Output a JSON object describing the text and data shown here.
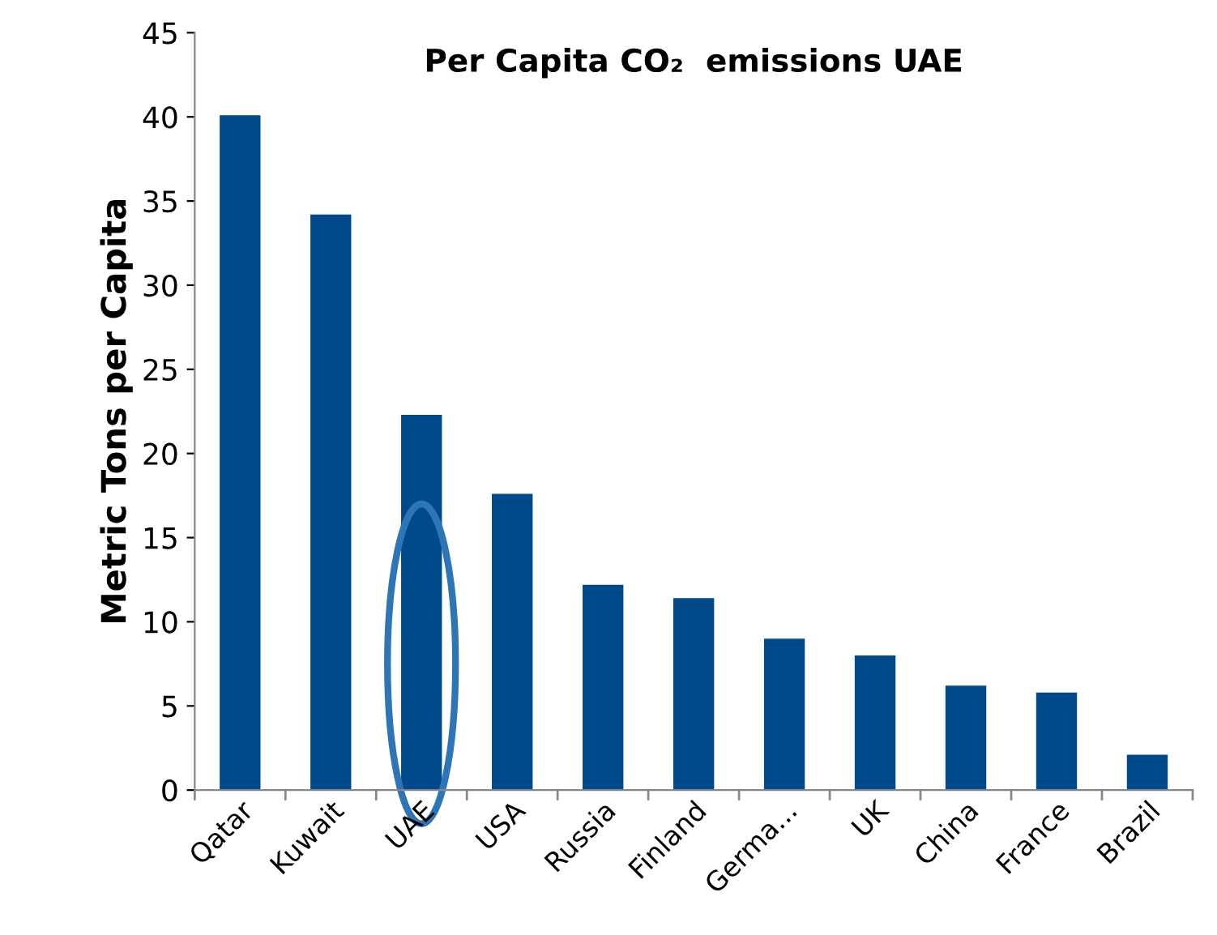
{
  "chart_data": {
    "type": "bar",
    "title": "Per Capita CO₂  emissions UAE",
    "ylabel": "Metric Tons per Capita",
    "categories": [
      "Qatar",
      "Kuwait",
      "UAE",
      "USA",
      "Russia",
      "Finland",
      "Germa...",
      "UK",
      "China",
      "France",
      "Brazil"
    ],
    "values": [
      40.1,
      34.2,
      22.3,
      17.6,
      12.2,
      11.4,
      9.0,
      8.0,
      6.2,
      5.8,
      2.1
    ],
    "color": "#004a8c",
    "ylim": [
      0,
      45
    ],
    "yticks": [
      0,
      5,
      10,
      15,
      20,
      25,
      30,
      35,
      40,
      45
    ],
    "grid": false,
    "legend": false
  }
}
